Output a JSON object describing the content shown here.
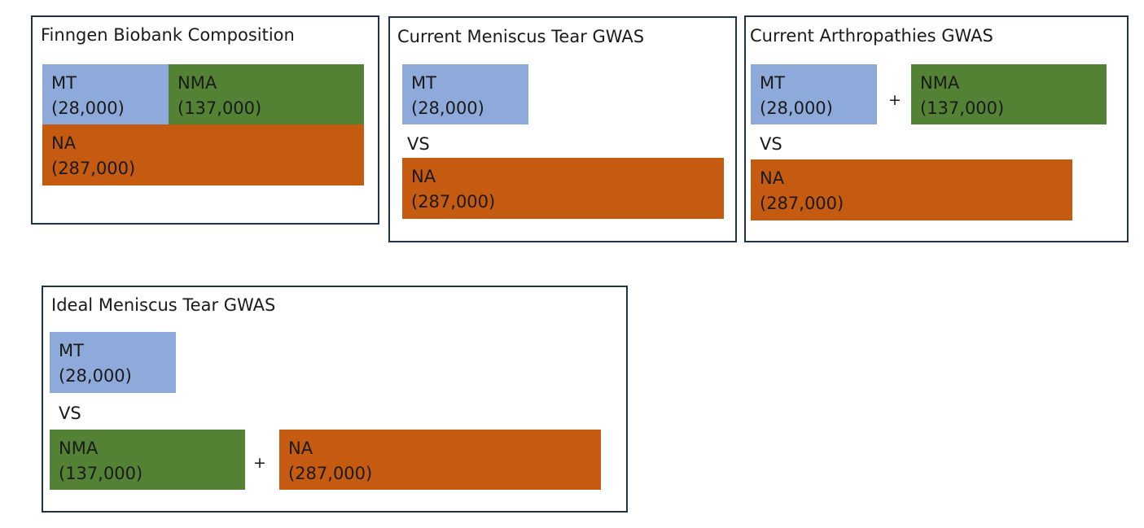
{
  "panels": {
    "composition": {
      "title": "Finngen Biobank Composition",
      "mt": {
        "label": "MT",
        "count": "(28,000)"
      },
      "nma": {
        "label": "NMA",
        "count": "(137,000)"
      },
      "na": {
        "label": "NA",
        "count": "(287,000)"
      }
    },
    "current_meniscus": {
      "title": "Current Meniscus Tear GWAS",
      "mt": {
        "label": "MT",
        "count": "(28,000)"
      },
      "vs": "VS",
      "na": {
        "label": "NA",
        "count": "(287,000)"
      }
    },
    "current_arthropathies": {
      "title": "Current Arthropathies GWAS",
      "mt": {
        "label": "MT",
        "count": "(28,000)"
      },
      "plus": "+",
      "nma": {
        "label": "NMA",
        "count": "(137,000)"
      },
      "vs": "VS",
      "na": {
        "label": "NA",
        "count": "(287,000)"
      }
    },
    "ideal_meniscus": {
      "title": "Ideal Meniscus Tear GWAS",
      "mt": {
        "label": "MT",
        "count": "(28,000)"
      },
      "vs": "VS",
      "nma": {
        "label": "NMA",
        "count": "(137,000)"
      },
      "plus": "+",
      "na": {
        "label": "NA",
        "count": "(287,000)"
      }
    }
  },
  "colors": {
    "mt": "#8eaadb",
    "nma": "#548235",
    "na": "#c55a11",
    "border": "#1f3347"
  }
}
